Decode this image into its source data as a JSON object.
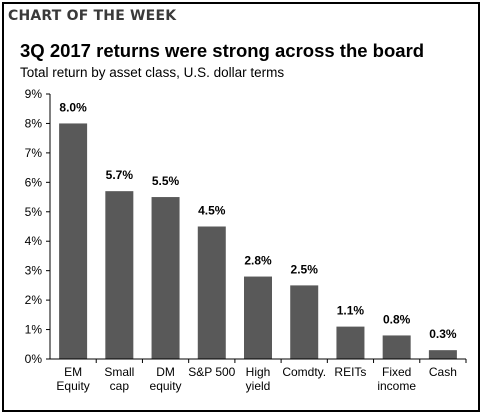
{
  "header": {
    "kicker": "CHART OF THE WEEK"
  },
  "chart_data": {
    "type": "bar",
    "title": "3Q 2017 returns were strong across the board",
    "subtitle": "Total return by asset class, U.S. dollar terms",
    "xlabel": "",
    "ylabel": "",
    "categories": [
      [
        "EM",
        "Equity"
      ],
      [
        "Small",
        "cap"
      ],
      [
        "DM",
        "equity"
      ],
      [
        "S&P 500"
      ],
      [
        "High",
        "yield"
      ],
      [
        "Comdty."
      ],
      [
        "REITs"
      ],
      [
        "Fixed",
        "income"
      ],
      [
        "Cash"
      ]
    ],
    "values": [
      8.0,
      5.7,
      5.5,
      4.5,
      2.8,
      2.5,
      1.1,
      0.8,
      0.3
    ],
    "data_labels": [
      "8.0%",
      "5.7%",
      "5.5%",
      "4.5%",
      "2.8%",
      "2.5%",
      "1.1%",
      "0.8%",
      "0.3%"
    ],
    "ylim": [
      0,
      9
    ],
    "yticks": [
      "0%",
      "1%",
      "2%",
      "3%",
      "4%",
      "5%",
      "6%",
      "7%",
      "8%",
      "9%"
    ],
    "grid": false,
    "legend": "none",
    "colors": {
      "bar": "#595959",
      "axis": "#000000",
      "kicker": "#3a3a3a"
    }
  }
}
